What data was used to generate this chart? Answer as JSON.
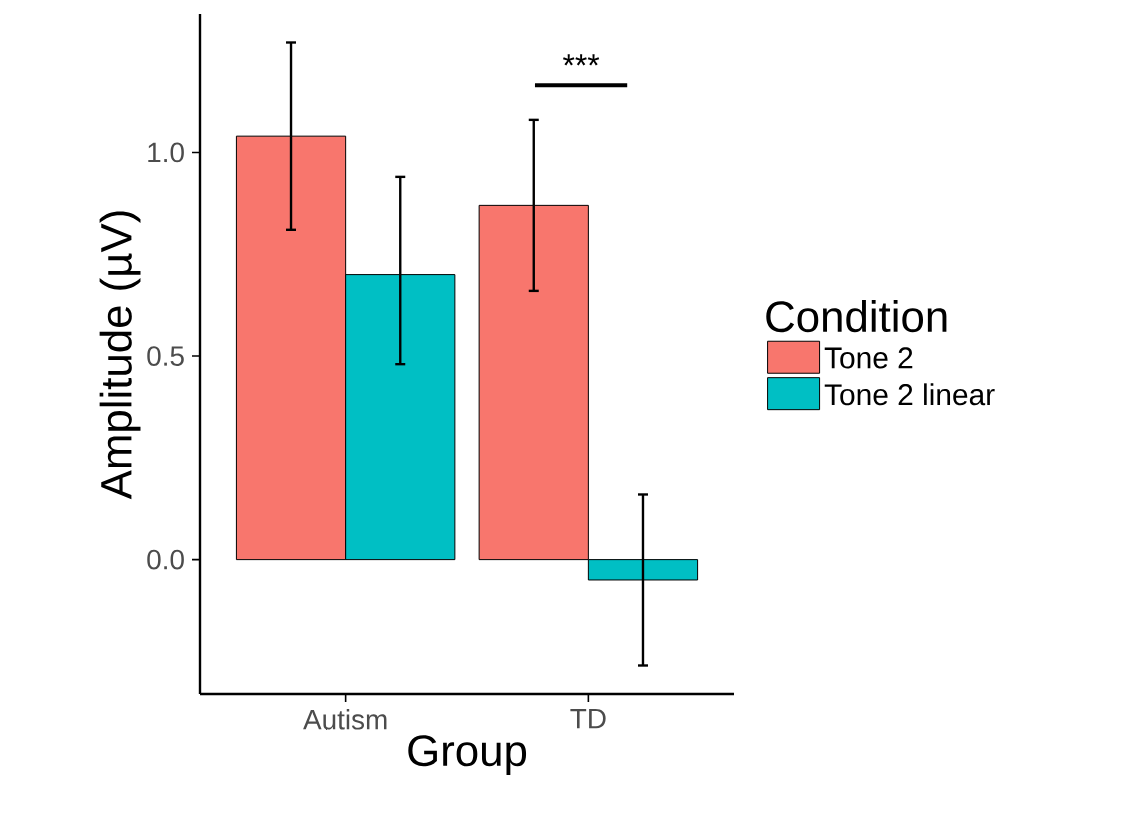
{
  "chart_data": {
    "type": "bar",
    "xlabel": "Group",
    "ylabel": "Amplitude (µV)",
    "legend_title": "Condition",
    "legend": "right",
    "categories": [
      "Autism",
      "TD"
    ],
    "series": [
      {
        "name": "Tone 2",
        "color": "#f8766d",
        "values": [
          1.04,
          0.87
        ],
        "errors": [
          [
            0.81,
            1.27
          ],
          [
            0.66,
            1.08
          ]
        ]
      },
      {
        "name": "Tone 2 linear",
        "color": "#00bfc4",
        "values": [
          0.7,
          -0.05
        ],
        "errors": [
          [
            0.48,
            0.94
          ],
          [
            -0.26,
            0.16
          ]
        ]
      }
    ],
    "ylim": [
      -0.33,
      1.34
    ],
    "yticks": [
      {
        "value": 0,
        "label": "0.0"
      },
      {
        "value": 0.5,
        "label": "0.5"
      },
      {
        "value": 1,
        "label": "1.0"
      }
    ],
    "annotations": [
      "***"
    ]
  }
}
